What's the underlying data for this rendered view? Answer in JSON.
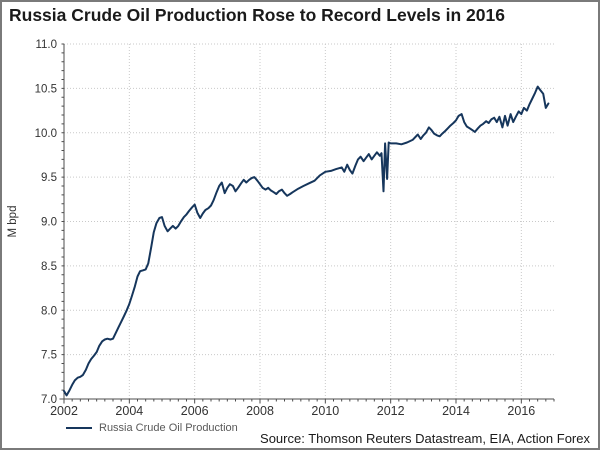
{
  "title": "Russia Crude Oil Production Rose to Record Levels in 2016",
  "source": "Source: Thomson Reuters Datastream, EIA, Action Forex",
  "legend": {
    "label": "Russia Crude Oil Production"
  },
  "colors": {
    "line": "#16365c",
    "grid": "#c9c9c9",
    "axis": "#4d4d4d",
    "tick_text": "#333333",
    "title_text": "#1a1a1a",
    "legend_text": "#595959",
    "border": "#7a7a7a"
  },
  "chart_data": {
    "type": "line",
    "title": "Russia Crude Oil Production Rose to Record Levels in 2016",
    "xlabel": "",
    "ylabel": "M bpd",
    "xlim": [
      2002,
      2017
    ],
    "ylim": [
      7.0,
      11.0
    ],
    "grid": true,
    "legend_position": "bottom-left",
    "x_ticks": [
      2002,
      2004,
      2006,
      2008,
      2010,
      2012,
      2014,
      2016
    ],
    "x_tick_labels": [
      "2002",
      "2004",
      "2006",
      "2008",
      "2010",
      "2012",
      "2014",
      "2016"
    ],
    "x_minor_step": 0.25,
    "y_ticks": [
      7.0,
      7.5,
      8.0,
      8.5,
      9.0,
      9.5,
      10.0,
      10.5,
      11.0
    ],
    "y_tick_labels": [
      "7.0",
      "7.5",
      "8.0",
      "8.5",
      "9.0",
      "9.5",
      "10.0",
      "10.5",
      "11.0"
    ],
    "y_minor_step": 0.1,
    "series": [
      {
        "name": "Russia Crude Oil Production",
        "color": "#16365c",
        "points": [
          [
            2002.0,
            7.09
          ],
          [
            2002.08,
            7.04
          ],
          [
            2002.17,
            7.1
          ],
          [
            2002.25,
            7.16
          ],
          [
            2002.33,
            7.21
          ],
          [
            2002.42,
            7.24
          ],
          [
            2002.5,
            7.25
          ],
          [
            2002.58,
            7.27
          ],
          [
            2002.67,
            7.33
          ],
          [
            2002.75,
            7.4
          ],
          [
            2002.83,
            7.45
          ],
          [
            2002.92,
            7.49
          ],
          [
            2003.0,
            7.53
          ],
          [
            2003.08,
            7.6
          ],
          [
            2003.17,
            7.65
          ],
          [
            2003.25,
            7.67
          ],
          [
            2003.33,
            7.68
          ],
          [
            2003.42,
            7.67
          ],
          [
            2003.5,
            7.68
          ],
          [
            2003.58,
            7.74
          ],
          [
            2003.67,
            7.81
          ],
          [
            2003.75,
            7.87
          ],
          [
            2003.83,
            7.93
          ],
          [
            2003.92,
            8.0
          ],
          [
            2004.0,
            8.07
          ],
          [
            2004.08,
            8.16
          ],
          [
            2004.17,
            8.27
          ],
          [
            2004.25,
            8.38
          ],
          [
            2004.33,
            8.44
          ],
          [
            2004.42,
            8.45
          ],
          [
            2004.5,
            8.46
          ],
          [
            2004.58,
            8.53
          ],
          [
            2004.67,
            8.71
          ],
          [
            2004.75,
            8.88
          ],
          [
            2004.83,
            8.98
          ],
          [
            2004.92,
            9.04
          ],
          [
            2005.0,
            9.05
          ],
          [
            2005.08,
            8.95
          ],
          [
            2005.17,
            8.89
          ],
          [
            2005.25,
            8.92
          ],
          [
            2005.33,
            8.95
          ],
          [
            2005.42,
            8.92
          ],
          [
            2005.5,
            8.95
          ],
          [
            2005.58,
            9.0
          ],
          [
            2005.67,
            9.05
          ],
          [
            2005.75,
            9.08
          ],
          [
            2005.83,
            9.12
          ],
          [
            2005.92,
            9.16
          ],
          [
            2006.0,
            9.19
          ],
          [
            2006.08,
            9.1
          ],
          [
            2006.17,
            9.04
          ],
          [
            2006.25,
            9.09
          ],
          [
            2006.33,
            9.13
          ],
          [
            2006.42,
            9.15
          ],
          [
            2006.5,
            9.18
          ],
          [
            2006.58,
            9.24
          ],
          [
            2006.67,
            9.33
          ],
          [
            2006.75,
            9.4
          ],
          [
            2006.83,
            9.44
          ],
          [
            2006.92,
            9.32
          ],
          [
            2007.0,
            9.38
          ],
          [
            2007.08,
            9.42
          ],
          [
            2007.17,
            9.4
          ],
          [
            2007.25,
            9.34
          ],
          [
            2007.33,
            9.38
          ],
          [
            2007.42,
            9.43
          ],
          [
            2007.5,
            9.47
          ],
          [
            2007.58,
            9.44
          ],
          [
            2007.67,
            9.47
          ],
          [
            2007.75,
            9.49
          ],
          [
            2007.83,
            9.5
          ],
          [
            2007.92,
            9.46
          ],
          [
            2008.0,
            9.42
          ],
          [
            2008.08,
            9.38
          ],
          [
            2008.17,
            9.36
          ],
          [
            2008.25,
            9.38
          ],
          [
            2008.33,
            9.35
          ],
          [
            2008.42,
            9.33
          ],
          [
            2008.5,
            9.31
          ],
          [
            2008.58,
            9.34
          ],
          [
            2008.67,
            9.36
          ],
          [
            2008.75,
            9.32
          ],
          [
            2008.83,
            9.29
          ],
          [
            2008.92,
            9.31
          ],
          [
            2009.0,
            9.33
          ],
          [
            2009.17,
            9.37
          ],
          [
            2009.33,
            9.4
          ],
          [
            2009.5,
            9.43
          ],
          [
            2009.67,
            9.46
          ],
          [
            2009.83,
            9.52
          ],
          [
            2010.0,
            9.56
          ],
          [
            2010.17,
            9.57
          ],
          [
            2010.33,
            9.59
          ],
          [
            2010.5,
            9.61
          ],
          [
            2010.58,
            9.56
          ],
          [
            2010.67,
            9.64
          ],
          [
            2010.75,
            9.58
          ],
          [
            2010.83,
            9.54
          ],
          [
            2010.92,
            9.63
          ],
          [
            2011.0,
            9.7
          ],
          [
            2011.08,
            9.73
          ],
          [
            2011.17,
            9.68
          ],
          [
            2011.25,
            9.72
          ],
          [
            2011.33,
            9.76
          ],
          [
            2011.42,
            9.7
          ],
          [
            2011.5,
            9.74
          ],
          [
            2011.58,
            9.78
          ],
          [
            2011.67,
            9.74
          ],
          [
            2011.72,
            9.77
          ],
          [
            2011.78,
            9.34
          ],
          [
            2011.83,
            9.88
          ],
          [
            2011.89,
            9.48
          ],
          [
            2011.94,
            9.89
          ],
          [
            2012.0,
            9.88
          ],
          [
            2012.17,
            9.88
          ],
          [
            2012.33,
            9.87
          ],
          [
            2012.5,
            9.89
          ],
          [
            2012.67,
            9.92
          ],
          [
            2012.83,
            9.98
          ],
          [
            2012.92,
            9.93
          ],
          [
            2013.0,
            9.97
          ],
          [
            2013.08,
            10.0
          ],
          [
            2013.17,
            10.06
          ],
          [
            2013.25,
            10.03
          ],
          [
            2013.33,
            9.99
          ],
          [
            2013.42,
            9.97
          ],
          [
            2013.5,
            9.96
          ],
          [
            2013.58,
            9.99
          ],
          [
            2013.67,
            10.02
          ],
          [
            2013.75,
            10.05
          ],
          [
            2013.83,
            10.08
          ],
          [
            2013.92,
            10.11
          ],
          [
            2014.0,
            10.14
          ],
          [
            2014.08,
            10.19
          ],
          [
            2014.17,
            10.21
          ],
          [
            2014.25,
            10.12
          ],
          [
            2014.33,
            10.07
          ],
          [
            2014.42,
            10.05
          ],
          [
            2014.5,
            10.03
          ],
          [
            2014.58,
            10.01
          ],
          [
            2014.67,
            10.05
          ],
          [
            2014.75,
            10.08
          ],
          [
            2014.83,
            10.1
          ],
          [
            2014.92,
            10.13
          ],
          [
            2015.0,
            10.11
          ],
          [
            2015.08,
            10.15
          ],
          [
            2015.17,
            10.17
          ],
          [
            2015.25,
            10.12
          ],
          [
            2015.33,
            10.18
          ],
          [
            2015.42,
            10.06
          ],
          [
            2015.5,
            10.19
          ],
          [
            2015.58,
            10.08
          ],
          [
            2015.67,
            10.21
          ],
          [
            2015.75,
            10.12
          ],
          [
            2015.83,
            10.18
          ],
          [
            2015.92,
            10.24
          ],
          [
            2016.0,
            10.21
          ],
          [
            2016.08,
            10.28
          ],
          [
            2016.17,
            10.25
          ],
          [
            2016.25,
            10.32
          ],
          [
            2016.33,
            10.38
          ],
          [
            2016.42,
            10.45
          ],
          [
            2016.5,
            10.52
          ],
          [
            2016.58,
            10.48
          ],
          [
            2016.67,
            10.44
          ],
          [
            2016.75,
            10.28
          ],
          [
            2016.83,
            10.33
          ]
        ]
      }
    ]
  }
}
